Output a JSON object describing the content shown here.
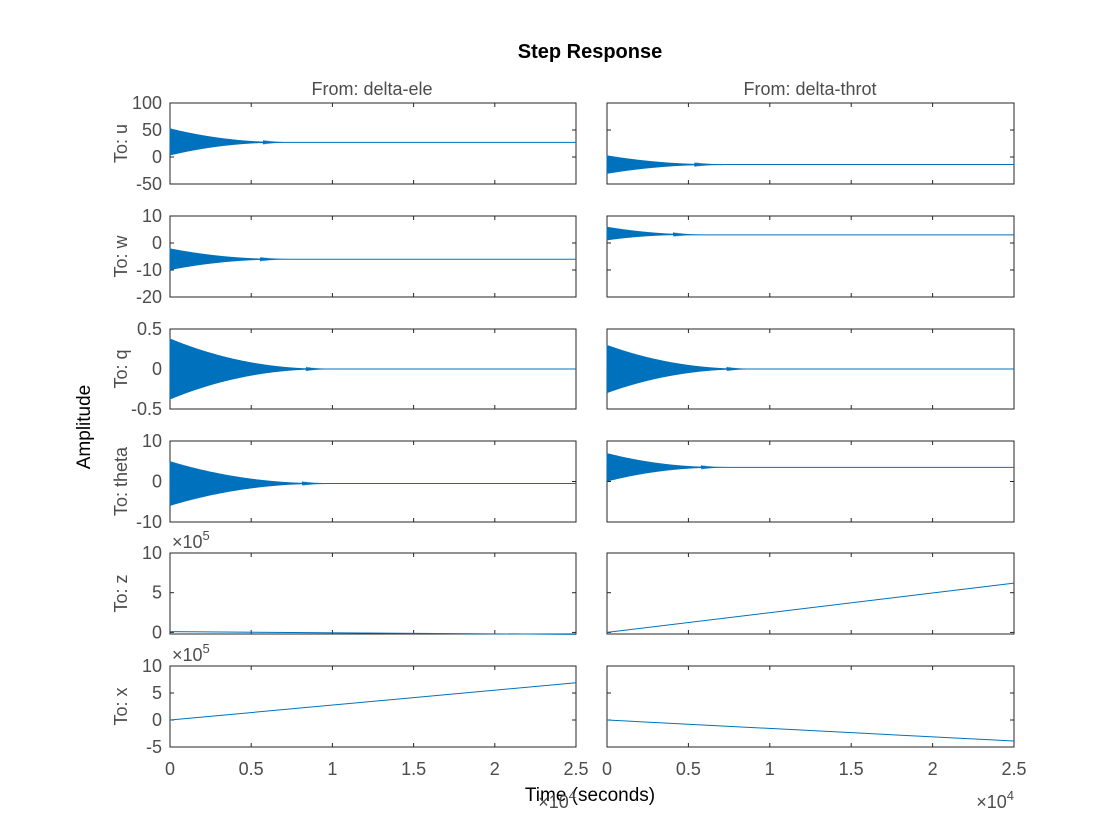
{
  "chart_data": {
    "type": "line",
    "title": "Step Response",
    "xlabel": "Time (seconds)",
    "ylabel": "Amplitude",
    "x_multiplier_label": "×10",
    "x_multiplier_exponent": "4",
    "xlim": [
      0,
      2.5
    ],
    "xticks": [
      0,
      0.5,
      1,
      1.5,
      2,
      2.5
    ],
    "xtick_labels": [
      "0",
      "0.5",
      "1",
      "1.5",
      "2",
      "2.5"
    ],
    "inputs": [
      "From: delta-ele",
      "From: delta-throt"
    ],
    "outputs": [
      {
        "label": "To: u",
        "ylim": [
          -50,
          100
        ],
        "yticks": [
          -50,
          0,
          50,
          100
        ],
        "ytick_labels": [
          "-50",
          "0",
          "50",
          "100"
        ],
        "multiplier": null
      },
      {
        "label": "To: w",
        "ylim": [
          -20,
          10
        ],
        "yticks": [
          -20,
          -10,
          0,
          10
        ],
        "ytick_labels": [
          "-20",
          "-10",
          "0",
          "10"
        ],
        "multiplier": null
      },
      {
        "label": "To: q",
        "ylim": [
          -0.5,
          0.5
        ],
        "yticks": [
          -0.5,
          0,
          0.5
        ],
        "ytick_labels": [
          "-0.5",
          "0",
          "0.5"
        ],
        "multiplier": null
      },
      {
        "label": "To: theta",
        "ylim": [
          -10,
          10
        ],
        "yticks": [
          -10,
          0,
          10
        ],
        "ytick_labels": [
          "-10",
          "0",
          "10"
        ],
        "multiplier": null
      },
      {
        "label": "To: z",
        "ylim": [
          -0.2,
          10
        ],
        "yticks": [
          0,
          5,
          10
        ],
        "ytick_labels": [
          "0",
          "5",
          "10"
        ],
        "multiplier": {
          "base": "×10",
          "exp": "5"
        }
      },
      {
        "label": "To: x",
        "ylim": [
          -5,
          10
        ],
        "yticks": [
          -5,
          0,
          5,
          10
        ],
        "ytick_labels": [
          "-5",
          "0",
          "5",
          "10"
        ],
        "multiplier": {
          "base": "×10",
          "exp": "5"
        }
      }
    ],
    "series_color": "#0072bd",
    "responses": [
      [
        {
          "kind": "oscillation",
          "final": 27,
          "center0": 28,
          "amp0": 25,
          "decay_end": 0.75
        },
        {
          "kind": "oscillation",
          "final": -14,
          "center0": -14,
          "amp0": 17,
          "decay_end": 0.75
        }
      ],
      [
        {
          "kind": "oscillation",
          "final": -6,
          "center0": -6,
          "amp0": 4,
          "decay_end": 0.75
        },
        {
          "kind": "oscillation",
          "final": 3,
          "center0": 3.5,
          "amp0": 2.5,
          "decay_end": 0.6
        }
      ],
      [
        {
          "kind": "oscillation",
          "final": 0,
          "center0": 0,
          "amp0": 0.38,
          "decay_end": 1.0
        },
        {
          "kind": "oscillation",
          "final": 0,
          "center0": 0,
          "amp0": 0.3,
          "decay_end": 0.9
        }
      ],
      [
        {
          "kind": "oscillation",
          "final": -0.5,
          "center0": -0.5,
          "amp0": 5.5,
          "decay_end": 1.0
        },
        {
          "kind": "oscillation",
          "final": 3.5,
          "center0": 3.5,
          "amp0": 3.5,
          "decay_end": 0.75
        }
      ],
      [
        {
          "kind": "ramp",
          "y0": 0.1,
          "y1": -0.25
        },
        {
          "kind": "ramp",
          "y0": 0,
          "y1": 6.2
        }
      ],
      [
        {
          "kind": "ramp",
          "y0": 0,
          "y1": 6.9
        },
        {
          "kind": "ramp",
          "y0": 0,
          "y1": -3.9
        }
      ]
    ]
  }
}
